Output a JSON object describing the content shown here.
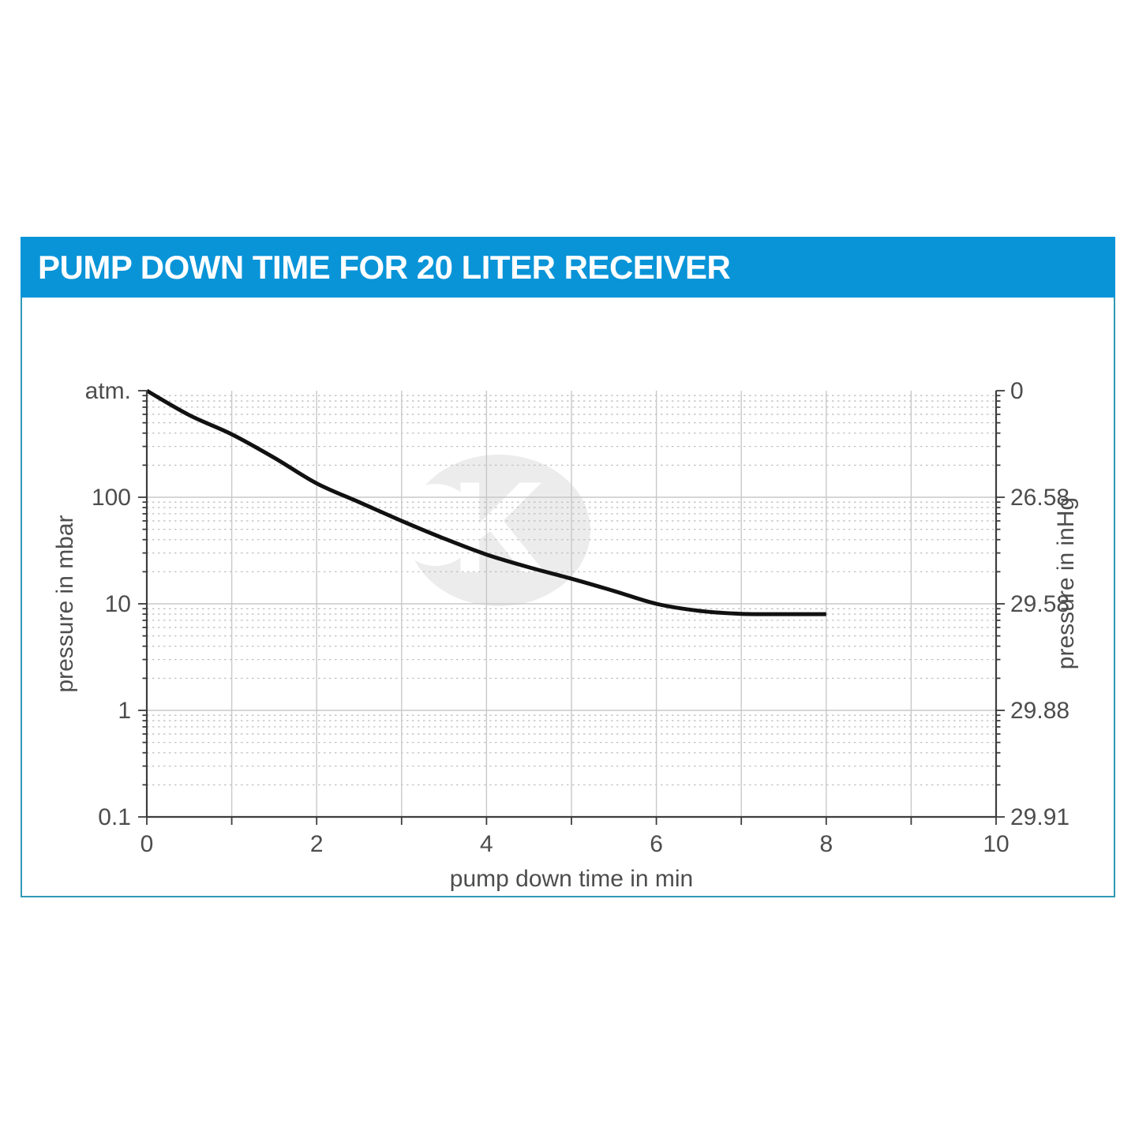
{
  "title_bar": {
    "title": "PUMP DOWN TIME FOR 20 LITER RECEIVER",
    "background_color": "#0994d8",
    "text_color": "#ffffff"
  },
  "card": {
    "border_color": "#2f9ab5",
    "background_color": "#ffffff"
  },
  "watermark": {
    "letter": "K",
    "color": "#ececec"
  },
  "chart_data": {
    "type": "line",
    "title": "PUMP DOWN TIME FOR 20 LITER RECEIVER",
    "xlabel": "pump down time in min",
    "ylabel_left": "pressure in mbar",
    "ylabel_right": "pressure in inHg",
    "xlim": [
      0,
      10
    ],
    "x_major_ticks": [
      0,
      2,
      4,
      6,
      8,
      10
    ],
    "x_minor_step": 1,
    "y_scale": "log",
    "ylim_mbar": [
      0.1,
      1000
    ],
    "grid": {
      "vertical_minutes": [
        1,
        2,
        3,
        4,
        5,
        6,
        7,
        8,
        9
      ],
      "horizontal_major_mbar": [
        100,
        10,
        1
      ],
      "log_minor_dotted": true
    },
    "y_ticks": [
      {
        "mbar": 1000,
        "label_left": "atm.",
        "label_right": "0"
      },
      {
        "mbar": 100,
        "label_left": "100",
        "label_right": "26.58"
      },
      {
        "mbar": 10,
        "label_left": "10",
        "label_right": "29.58"
      },
      {
        "mbar": 1,
        "label_left": "1",
        "label_right": "29.88"
      },
      {
        "mbar": 0.1,
        "label_left": "0.1",
        "label_right": "29.91"
      }
    ],
    "legend": "none",
    "series": [
      {
        "name": "pump-down-curve",
        "color": "#111111",
        "ultimate_pressure_mbar": 8,
        "end_time_min": 8,
        "points_min_mbar": [
          [
            0,
            1000
          ],
          [
            0.5,
            590
          ],
          [
            1,
            390
          ],
          [
            1.5,
            235
          ],
          [
            2,
            135
          ],
          [
            2.5,
            90
          ],
          [
            3,
            60
          ],
          [
            3.5,
            41
          ],
          [
            4,
            29
          ],
          [
            4.5,
            22
          ],
          [
            5,
            17.2
          ],
          [
            5.5,
            13.2
          ],
          [
            6,
            10
          ],
          [
            6.5,
            8.6
          ],
          [
            7,
            8.05
          ],
          [
            7.5,
            8.0
          ],
          [
            8,
            8.0
          ]
        ]
      }
    ],
    "style": {
      "axis_color": "#3d3d3d",
      "label_color": "#4d4d4d",
      "major_grid_color": "#c8c8c8",
      "minor_grid_color": "#bfbfbf"
    }
  }
}
